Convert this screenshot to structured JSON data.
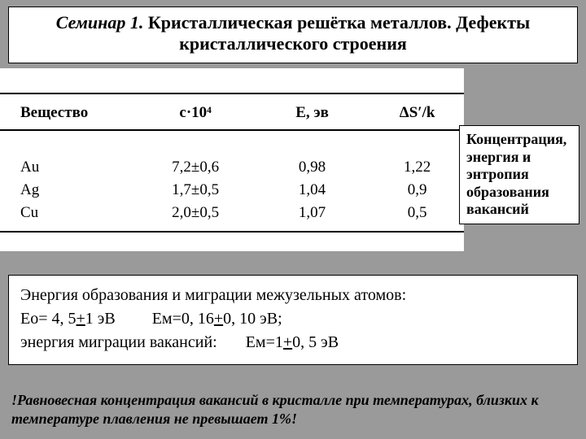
{
  "title": {
    "seminar": "Семинар 1.",
    "main": " Кристаллическая решётка металлов. Дефекты кристаллического строения"
  },
  "table": {
    "headers": {
      "c1": "Вещество",
      "c2": "c·10⁴",
      "c3": "E, эв",
      "c4": "ΔS′/k"
    },
    "rows": [
      {
        "c1": "Au",
        "c2": "7,2±0,6",
        "c3": "0,98",
        "c4": "1,22"
      },
      {
        "c1": "Ag",
        "c2": "1,7±0,5",
        "c3": "1,04",
        "c4": "0,9"
      },
      {
        "c1": "Cu",
        "c2": "2,0±0,5",
        "c3": "1,07",
        "c4": "0,5"
      }
    ]
  },
  "caption": "Концентрация, энергия и энтропия образования вакансий",
  "block": {
    "line1": "Энергия образования и миграции межузельных атомов:",
    "eo_label": "Ео= 4, 5",
    "eo_pm": "+",
    "eo_rest": "1 эВ",
    "em1_label": "Ем=0, 16",
    "em1_pm": "+",
    "em1_rest": "0, 10 эВ;",
    "line3a": " энергия миграции вакансий:",
    "em2_label": "Ем=1",
    "em2_pm": "+",
    "em2_rest": "0, 5 эВ"
  },
  "footer": "!Равновесная концентрация вакансий в кристалле при температурах, близких к температуре плавления не превышает 1%!",
  "colors": {
    "page_bg": "#9a9a9a",
    "box_bg": "#ffffff",
    "border": "#000000",
    "text": "#000000"
  }
}
